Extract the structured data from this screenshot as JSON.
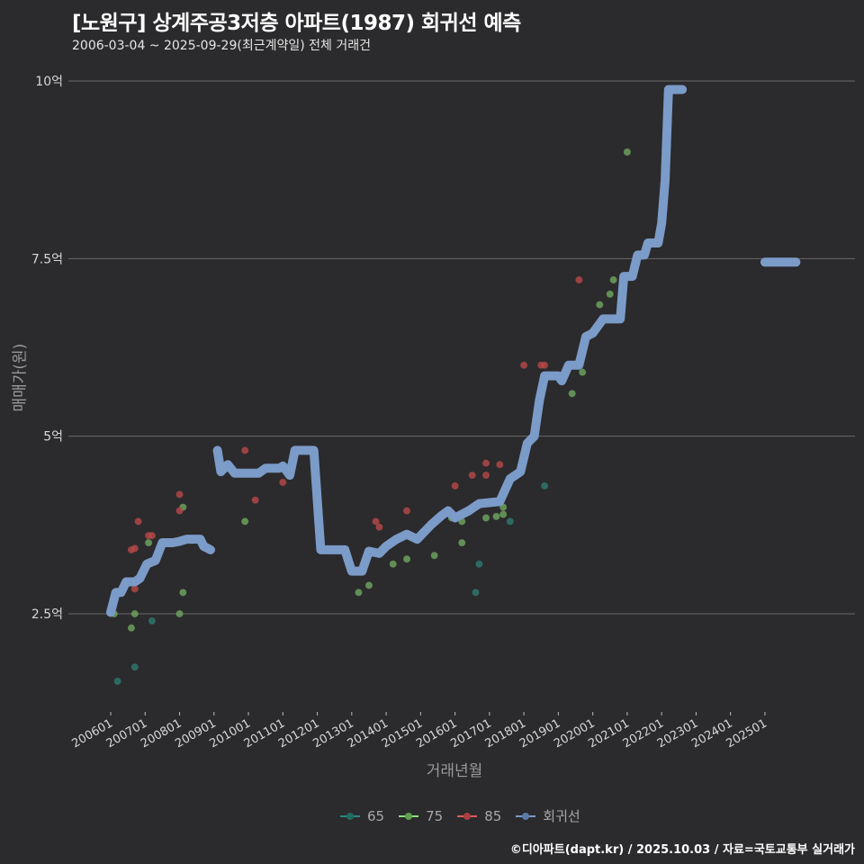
{
  "header": {
    "title": "[노원구] 상계주공3저층 아파트(1987) 회귀선 예측",
    "subtitle": "2006-03-04 ~ 2025-09-29(최근계약일) 전체 거래건"
  },
  "axes": {
    "ylabel": "매매가(원)",
    "xlabel": "거래년월"
  },
  "legend": [
    {
      "label": "65",
      "color": "#2a8a80"
    },
    {
      "label": "75",
      "color": "#8ee07a"
    },
    {
      "label": "85",
      "color": "#e05a5a"
    },
    {
      "label": "회귀선",
      "color": "#7b9bc8"
    }
  ],
  "footer": "©디아파트(dapt.kr) / 2025.10.03 / 자료=국토교통부 실거래가",
  "colors": {
    "background": "#2b2a2c",
    "grid": "#6a6a6a",
    "regression": "#7b9bc8",
    "s65": "#2e7a70",
    "s75": "#6fa860",
    "s85": "#b84848"
  },
  "chart_data": {
    "type": "scatter",
    "title": "[노원구] 상계주공3저층 아파트(1987) 회귀선 예측",
    "subtitle": "2006-03-04 ~ 2025-09-29(최근계약일) 전체 거래건",
    "xlabel": "거래년월",
    "ylabel": "매매가(원)",
    "x_ticks": [
      "200601",
      "200701",
      "200801",
      "200901",
      "201001",
      "201101",
      "201201",
      "201301",
      "201401",
      "201501",
      "201601",
      "201701",
      "201801",
      "201901",
      "202001",
      "202101",
      "202201",
      "202301",
      "202401",
      "202501"
    ],
    "y_ticks": [
      {
        "value": 2.5,
        "label": "2.5억"
      },
      {
        "value": 5,
        "label": "5억"
      },
      {
        "value": 7.5,
        "label": "7.5억"
      },
      {
        "value": 10,
        "label": "10억"
      }
    ],
    "ylim": [
      1.3,
      10.2
    ],
    "xlim": [
      2005.5,
      2027.7
    ],
    "grid": "horizontal",
    "legend_position": "bottom",
    "series": [
      {
        "name": "65",
        "points": [
          [
            2006.2,
            1.55
          ],
          [
            2006.7,
            1.75
          ],
          [
            2007.2,
            2.4
          ],
          [
            2016.6,
            2.8
          ],
          [
            2016.7,
            3.2
          ],
          [
            2017.6,
            3.8
          ],
          [
            2018.6,
            4.3
          ]
        ]
      },
      {
        "name": "75",
        "points": [
          [
            2006.1,
            2.5
          ],
          [
            2006.6,
            2.3
          ],
          [
            2006.7,
            2.5
          ],
          [
            2007.1,
            3.5
          ],
          [
            2008.0,
            2.5
          ],
          [
            2008.1,
            2.8
          ],
          [
            2008.1,
            4.0
          ],
          [
            2009.9,
            3.8
          ],
          [
            2013.2,
            2.8
          ],
          [
            2013.5,
            2.9
          ],
          [
            2014.2,
            3.2
          ],
          [
            2014.6,
            3.27
          ],
          [
            2015.4,
            3.32
          ],
          [
            2015.9,
            3.85
          ],
          [
            2016.2,
            3.5
          ],
          [
            2016.2,
            3.8
          ],
          [
            2016.9,
            3.85
          ],
          [
            2017.2,
            3.87
          ],
          [
            2017.4,
            3.9
          ],
          [
            2017.4,
            4.0
          ],
          [
            2019.4,
            5.6
          ],
          [
            2019.7,
            5.9
          ],
          [
            2020.2,
            6.85
          ],
          [
            2020.5,
            7.0
          ],
          [
            2020.6,
            7.2
          ],
          [
            2021.0,
            9.0
          ]
        ]
      },
      {
        "name": "85",
        "points": [
          [
            2006.7,
            2.85
          ],
          [
            2006.6,
            3.4
          ],
          [
            2006.7,
            3.42
          ],
          [
            2006.8,
            3.8
          ],
          [
            2007.1,
            3.6
          ],
          [
            2007.2,
            3.6
          ],
          [
            2008.0,
            4.18
          ],
          [
            2008.0,
            3.95
          ],
          [
            2009.9,
            4.8
          ],
          [
            2010.2,
            4.1
          ],
          [
            2011.0,
            4.35
          ],
          [
            2013.7,
            3.8
          ],
          [
            2013.8,
            3.72
          ],
          [
            2014.6,
            3.95
          ],
          [
            2016.0,
            4.3
          ],
          [
            2016.5,
            4.45
          ],
          [
            2016.9,
            4.45
          ],
          [
            2016.9,
            4.62
          ],
          [
            2017.3,
            4.6
          ],
          [
            2018.0,
            6.0
          ],
          [
            2018.5,
            6.0
          ],
          [
            2018.6,
            6.0
          ],
          [
            2019.6,
            7.2
          ]
        ]
      },
      {
        "name": "회귀선",
        "segments": [
          [
            [
              2006.0,
              2.52
            ],
            [
              2006.15,
              2.8
            ],
            [
              2006.3,
              2.8
            ],
            [
              2006.45,
              2.95
            ],
            [
              2006.7,
              2.95
            ],
            [
              2006.85,
              3.0
            ],
            [
              2007.05,
              3.2
            ],
            [
              2007.3,
              3.25
            ],
            [
              2007.5,
              3.5
            ],
            [
              2007.8,
              3.5
            ],
            [
              2008.0,
              3.52
            ],
            [
              2008.2,
              3.55
            ],
            [
              2008.6,
              3.55
            ],
            [
              2008.7,
              3.45
            ],
            [
              2008.9,
              3.4
            ]
          ],
          [
            [
              2009.1,
              4.8
            ],
            [
              2009.2,
              4.5
            ],
            [
              2009.4,
              4.6
            ],
            [
              2009.6,
              4.48
            ],
            [
              2010.3,
              4.48
            ],
            [
              2010.5,
              4.55
            ],
            [
              2010.9,
              4.55
            ],
            [
              2011.0,
              4.58
            ],
            [
              2011.2,
              4.45
            ],
            [
              2011.35,
              4.8
            ],
            [
              2011.9,
              4.8
            ],
            [
              2012.1,
              3.4
            ],
            [
              2012.8,
              3.4
            ],
            [
              2013.0,
              3.1
            ],
            [
              2013.3,
              3.1
            ],
            [
              2013.5,
              3.38
            ],
            [
              2013.8,
              3.35
            ],
            [
              2014.0,
              3.45
            ],
            [
              2014.3,
              3.55
            ],
            [
              2014.6,
              3.62
            ],
            [
              2014.9,
              3.55
            ],
            [
              2015.3,
              3.75
            ],
            [
              2015.6,
              3.88
            ],
            [
              2015.8,
              3.95
            ],
            [
              2016.0,
              3.85
            ],
            [
              2016.4,
              3.95
            ],
            [
              2016.7,
              4.05
            ],
            [
              2017.3,
              4.08
            ],
            [
              2017.6,
              4.4
            ],
            [
              2017.9,
              4.5
            ],
            [
              2018.1,
              4.9
            ],
            [
              2018.3,
              5.0
            ],
            [
              2018.45,
              5.5
            ],
            [
              2018.6,
              5.85
            ],
            [
              2019.0,
              5.85
            ],
            [
              2019.1,
              5.78
            ],
            [
              2019.3,
              6.0
            ],
            [
              2019.6,
              6.0
            ],
            [
              2019.8,
              6.4
            ],
            [
              2020.0,
              6.45
            ],
            [
              2020.3,
              6.65
            ],
            [
              2020.8,
              6.65
            ],
            [
              2020.9,
              7.25
            ],
            [
              2021.15,
              7.25
            ],
            [
              2021.3,
              7.55
            ],
            [
              2021.5,
              7.55
            ],
            [
              2021.6,
              7.72
            ],
            [
              2021.9,
              7.72
            ],
            [
              2022.0,
              8.0
            ],
            [
              2022.1,
              8.6
            ],
            [
              2022.2,
              9.88
            ],
            [
              2022.6,
              9.88
            ]
          ],
          [
            [
              2025.0,
              7.45
            ],
            [
              2025.9,
              7.45
            ]
          ]
        ]
      }
    ]
  }
}
